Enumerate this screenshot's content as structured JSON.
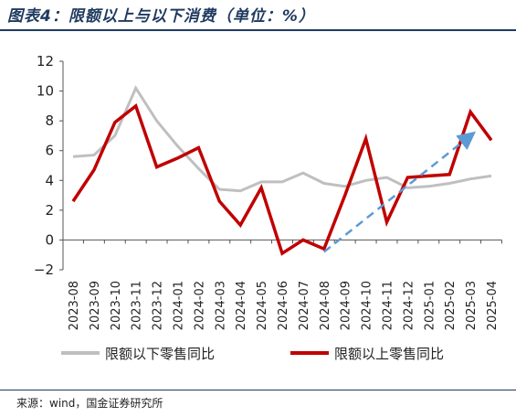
{
  "header": {
    "title": "图表4：限额以上与以下消费（单位：%）"
  },
  "footer": {
    "source": "来源：wind，国金证券研究所"
  },
  "chart_data": {
    "type": "line",
    "categories": [
      "2023-08",
      "2023-09",
      "2023-10",
      "2023-11",
      "2023-12",
      "2024-01",
      "2024-02",
      "2024-03",
      "2024-04",
      "2024-05",
      "2024-06",
      "2024-07",
      "2024-08",
      "2024-09",
      "2024-10",
      "2024-11",
      "2024-12",
      "2025-01",
      "2025-02",
      "2025-03",
      "2025-04"
    ],
    "ylim": [
      -2,
      12
    ],
    "yticks": [
      -2,
      0,
      2,
      4,
      6,
      8,
      10,
      12
    ],
    "grid": false,
    "legend_position": "bottom",
    "series": [
      {
        "name": "限额以下零售同比",
        "color": "#bfbfbf",
        "values": [
          5.6,
          5.7,
          7.0,
          10.2,
          8.0,
          6.3,
          4.8,
          3.4,
          3.3,
          3.9,
          3.9,
          4.5,
          3.8,
          3.6,
          4.0,
          4.2,
          3.5,
          3.6,
          3.8,
          4.1,
          4.3
        ]
      },
      {
        "name": "限额以上零售同比",
        "color": "#c00000",
        "values": [
          2.6,
          4.7,
          7.9,
          9.0,
          4.9,
          5.5,
          6.2,
          2.6,
          1.0,
          3.5,
          -0.9,
          0.0,
          -0.6,
          3.0,
          6.8,
          1.2,
          4.2,
          4.3,
          4.4,
          8.6,
          6.7
        ]
      }
    ],
    "annotations": [
      {
        "type": "dashed-arrow",
        "color": "#5b9bd5",
        "from": {
          "x": "2024-08",
          "y": -0.8
        },
        "to": {
          "x": "2025-03",
          "y": 7.0
        }
      }
    ]
  }
}
